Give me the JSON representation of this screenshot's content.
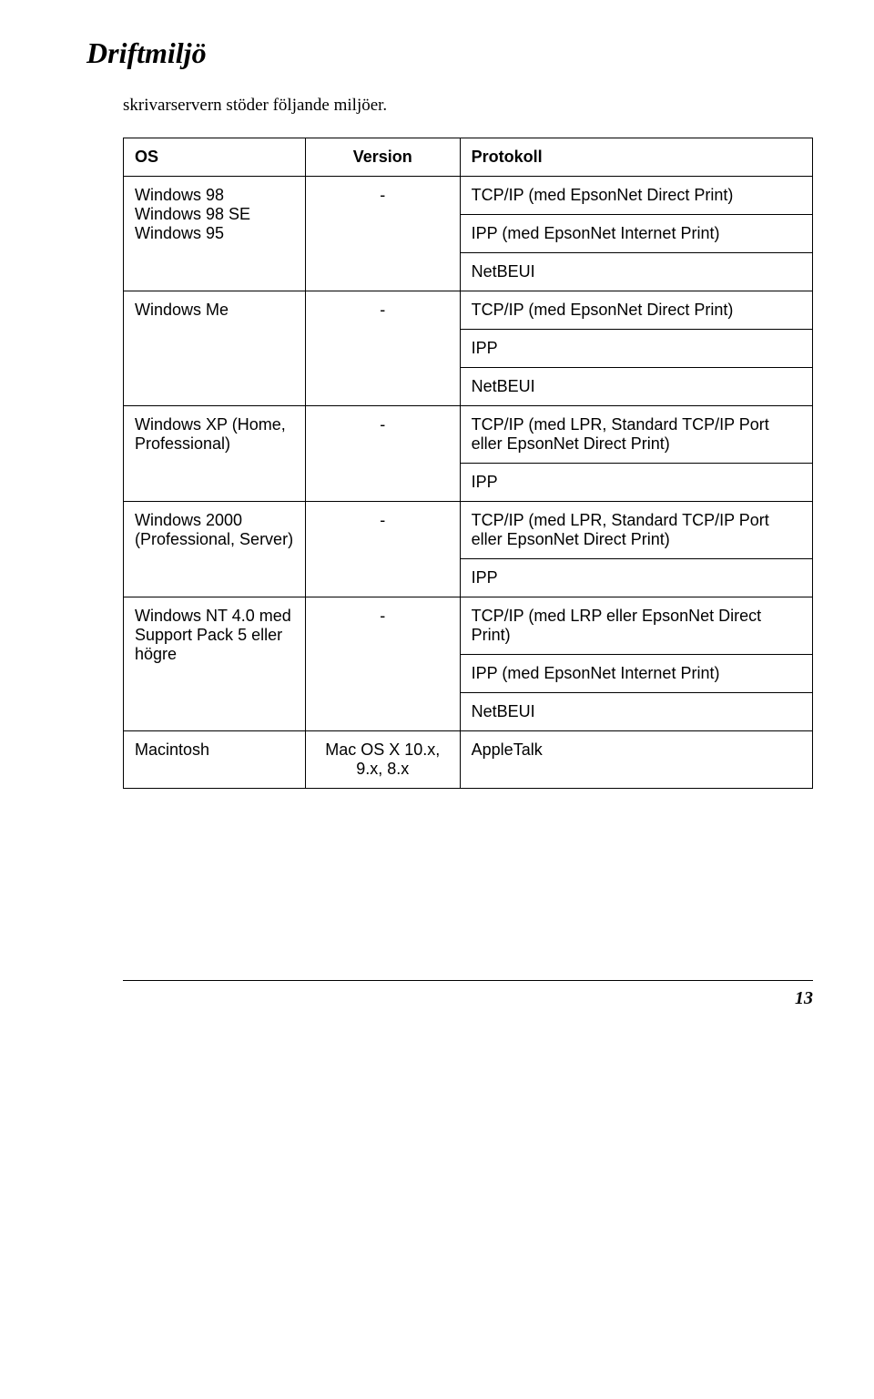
{
  "title": "Driftmiljö",
  "intro": "skrivarservern stöder följande miljöer.",
  "headers": {
    "os": "OS",
    "version": "Version",
    "protocol": "Protokoll"
  },
  "rows": [
    {
      "os": "Windows 98\nWindows 98 SE\nWindows 95",
      "version": "-",
      "protocols": [
        "TCP/IP (med EpsonNet Direct Print)",
        "IPP (med EpsonNet Internet Print)",
        "NetBEUI"
      ]
    },
    {
      "os": "Windows Me",
      "version": "-",
      "protocols": [
        "TCP/IP (med EpsonNet Direct Print)",
        "IPP",
        "NetBEUI"
      ]
    },
    {
      "os": "Windows XP (Home, Professional)",
      "version": "-",
      "protocols": [
        "TCP/IP (med LPR, Standard TCP/IP Port eller EpsonNet Direct Print)",
        "IPP"
      ]
    },
    {
      "os": "Windows 2000 (Professional, Server)",
      "version": "-",
      "protocols": [
        "TCP/IP (med LPR, Standard TCP/IP Port eller EpsonNet Direct Print)",
        "IPP"
      ]
    },
    {
      "os": "Windows NT 4.0 med Support Pack 5 eller högre",
      "version": "-",
      "protocols": [
        "TCP/IP (med LRP eller EpsonNet Direct Print)",
        "IPP (med EpsonNet Internet Print)",
        "NetBEUI"
      ]
    },
    {
      "os": "Macintosh",
      "version": "Mac OS X 10.x, 9.x, 8.x",
      "protocols": [
        "AppleTalk"
      ]
    }
  ],
  "page_number": "13",
  "colors": {
    "text": "#000000",
    "background": "#ffffff",
    "border": "#000000"
  }
}
